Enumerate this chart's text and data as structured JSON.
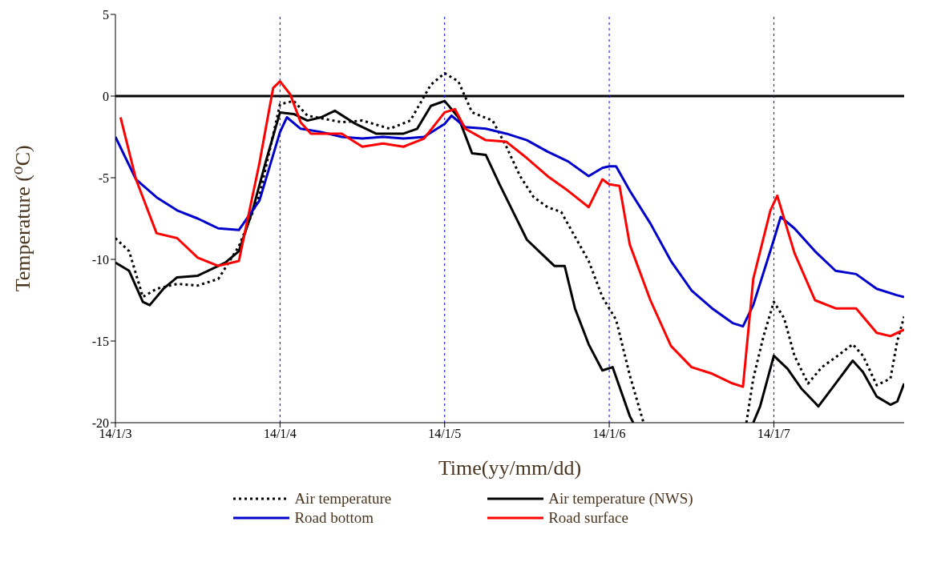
{
  "chart_data": {
    "type": "line",
    "xlabel": "Time(yy/mm/dd)",
    "ylabel": "Temperature ($^{o}$C)",
    "xlim": [
      "--01-03T00:00",
      "--01-07T19:00"
    ],
    "xticks": [
      {
        "value": "--01-03T00:00",
        "label": "14/1/3"
      },
      {
        "value": "--01-04T00:00",
        "label": "14/1/4"
      },
      {
        "value": "--01-05T00:00",
        "label": "14/1/5"
      },
      {
        "value": "--01-06T00:00",
        "label": "14/1/6"
      },
      {
        "value": "--01-07T00:00",
        "label": "14/1/7"
      }
    ],
    "ylim": [
      -20,
      5
    ],
    "yticks": [
      -20,
      -15,
      -10,
      -5,
      0,
      5
    ],
    "legend": "bottom",
    "marker": "none",
    "ref_lines": [
      {
        "axis": "y",
        "value": 0,
        "color": "#000000",
        "line_style": "solid"
      },
      {
        "axis": "x",
        "value": "--01-04T00:00",
        "color": "#0000ff",
        "line_style": "dotted"
      },
      {
        "axis": "x",
        "value": "--01-05T00:00",
        "color": "#0000ff",
        "line_style": "dotted"
      },
      {
        "axis": "x",
        "value": "--01-06T00:00",
        "color": "#0000ff",
        "line_style": "dotted"
      },
      {
        "axis": "x",
        "value": "--01-07T00:00",
        "color": "#0000ff",
        "line_style": "dotted"
      }
    ],
    "series": [
      {
        "name": "Air temperature",
        "color": "#000000",
        "line_style": "dotted",
        "x": [
          "--01-03T00:00",
          "--01-03T02:00",
          "--01-03T04:00",
          "--01-03T06:00",
          "--01-03T09:00",
          "--01-03T12:00",
          "--01-03T15:00",
          "--01-03T18:00",
          "--01-03T21:00",
          "--01-04T00:00",
          "--01-04T02:00",
          "--01-04T04:00",
          "--01-04T09:00",
          "--01-04T12:00",
          "--01-04T16:00",
          "--01-04T19:00",
          "--01-04T22:00",
          "--01-05T00:00",
          "--01-05T02:00",
          "--01-05T04:00",
          "--01-05T07:00",
          "--01-05T09:00",
          "--01-05T11:00",
          "--01-05T13:00",
          "--01-05T15:00",
          "--01-05T17:00",
          "--01-05T19:00",
          "--01-05T21:00",
          "--01-05T23:00",
          "--01-06T00:00",
          "--01-06T01:00",
          "--01-06T03:00",
          "--01-06T05:00",
          "--01-06T06:00",
          "--01-06T20:00",
          "--01-06T21:00",
          "--01-06T22:30",
          "--01-07T00:00",
          "--01-07T01:30",
          "--01-07T03:00",
          "--01-07T05:00",
          "--01-07T07:00",
          "--01-07T09:00",
          "--01-07T11:30",
          "--01-07T13:00",
          "--01-07T15:00",
          "--01-07T17:00",
          "--01-07T18:00",
          "--01-07T19:00"
        ],
        "values": [
          -8.7,
          -9.5,
          -12.3,
          -11.8,
          -11.5,
          -11.6,
          -11.2,
          -9.2,
          -6.1,
          -0.5,
          -0.3,
          -1.2,
          -1.6,
          -1.5,
          -2.0,
          -1.5,
          0.7,
          1.4,
          0.9,
          -1.0,
          -1.5,
          -3.1,
          -4.9,
          -6.2,
          -6.8,
          -7.1,
          -8.6,
          -10.1,
          -12.3,
          -13.0,
          -13.7,
          -17.1,
          -20,
          null,
          -20,
          -17.3,
          -14.7,
          -12.6,
          -13.6,
          -15.9,
          -17.6,
          -16.6,
          -16.0,
          -15.2,
          -15.9,
          -17.7,
          -17.3,
          -15.0,
          -13.5
        ]
      },
      {
        "name": "Air temperature (NWS)",
        "color": "#000000",
        "line_style": "solid",
        "x": [
          "--01-03T00:00",
          "--01-03T02:00",
          "--01-03T04:00",
          "--01-03T05:00",
          "--01-03T07:00",
          "--01-03T09:00",
          "--01-03T12:00",
          "--01-03T16:00",
          "--01-03T18:00",
          "--01-03T20:00",
          "--01-03T22:00",
          "--01-04T00:00",
          "--01-04T02:00",
          "--01-04T04:00",
          "--01-04T06:00",
          "--01-04T08:00",
          "--01-04T11:00",
          "--01-04T14:00",
          "--01-04T18:00",
          "--01-04T20:00",
          "--01-04T22:00",
          "--01-05T00:00",
          "--01-05T02:00",
          "--01-05T04:00",
          "--01-05T06:00",
          "--01-05T08:00",
          "--01-05T10:00",
          "--01-05T12:00",
          "--01-05T14:00",
          "--01-05T16:00",
          "--01-05T17:30",
          "--01-05T19:00",
          "--01-05T21:00",
          "--01-05T23:00",
          "--01-06T00:30",
          "--01-06T03:00",
          "--01-06T03:30",
          "--01-06T04:00",
          "--01-06T21:00",
          "--01-06T22:00",
          "--01-07T00:00",
          "--01-07T02:00",
          "--01-07T04:00",
          "--01-07T06:30",
          "--01-07T09:00",
          "--01-07T11:30",
          "--01-07T13:00",
          "--01-07T15:00",
          "--01-07T17:00",
          "--01-07T18:00",
          "--01-07T19:00"
        ],
        "values": [
          -10.2,
          -10.7,
          -12.6,
          -12.8,
          -11.8,
          -11.1,
          -11.0,
          -10.2,
          -9.5,
          -7.0,
          -3.9,
          -1.0,
          -1.1,
          -1.5,
          -1.3,
          -0.9,
          -1.7,
          -2.3,
          -2.3,
          -2.0,
          -0.6,
          -0.3,
          -1.3,
          -3.5,
          -3.6,
          -5.4,
          -7.1,
          -8.8,
          -9.6,
          -10.4,
          -10.4,
          -13.0,
          -15.2,
          -16.8,
          -16.6,
          -19.6,
          -20,
          null,
          -20,
          -19.0,
          -15.9,
          -16.7,
          -17.9,
          -19.0,
          -17.6,
          -16.2,
          -16.9,
          -18.4,
          -18.9,
          -18.7,
          -17.6
        ]
      },
      {
        "name": "Road bottom",
        "color": "#0000cc",
        "line_style": "solid",
        "x": [
          "--01-03T00:00",
          "--01-03T03:00",
          "--01-03T06:00",
          "--01-03T09:00",
          "--01-03T12:00",
          "--01-03T15:00",
          "--01-03T18:00",
          "--01-03T21:00",
          "--01-04T00:00",
          "--01-04T01:00",
          "--01-04T03:00",
          "--01-04T06:00",
          "--01-04T09:00",
          "--01-04T12:00",
          "--01-04T15:00",
          "--01-04T18:00",
          "--01-04T21:00",
          "--01-05T00:00",
          "--01-05T01:00",
          "--01-05T03:00",
          "--01-05T06:00",
          "--01-05T09:00",
          "--01-05T12:00",
          "--01-05T15:00",
          "--01-05T18:00",
          "--01-05T21:00",
          "--01-05T23:00",
          "--01-06T00:00",
          "--01-06T01:00",
          "--01-06T03:00",
          "--01-06T06:00",
          "--01-06T09:00",
          "--01-06T12:00",
          "--01-06T15:00",
          "--01-06T18:00",
          "--01-06T19:30",
          "--01-06T21:00",
          "--01-07T00:00",
          "--01-07T01:00",
          "--01-07T03:00",
          "--01-07T06:00",
          "--01-07T09:00",
          "--01-07T12:00",
          "--01-07T15:00",
          "--01-07T18:00",
          "--01-07T19:00"
        ],
        "values": [
          -2.5,
          -5.1,
          -6.2,
          -7.0,
          -7.5,
          -8.1,
          -8.2,
          -6.4,
          -2.2,
          -1.3,
          -2.0,
          -2.2,
          -2.5,
          -2.6,
          -2.5,
          -2.6,
          -2.5,
          -1.7,
          -1.2,
          -1.9,
          -2.0,
          -2.3,
          -2.7,
          -3.4,
          -4.0,
          -4.9,
          -4.4,
          -4.3,
          -4.3,
          -5.8,
          -7.8,
          -10.1,
          -11.9,
          -13.0,
          -13.9,
          -14.1,
          -12.8,
          -8.8,
          -7.4,
          -8.1,
          -9.5,
          -10.7,
          -10.9,
          -11.8,
          -12.2,
          -12.3
        ]
      },
      {
        "name": "Road surface",
        "color": "#ff0000",
        "line_style": "solid",
        "x": [
          "--01-03T00:45",
          "--01-03T03:00",
          "--01-03T06:00",
          "--01-03T09:00",
          "--01-03T12:00",
          "--01-03T15:00",
          "--01-03T18:00",
          "--01-03T21:00",
          "--01-03T23:00",
          "--01-04T00:00",
          "--01-04T01:30",
          "--01-04T03:00",
          "--01-04T04:30",
          "--01-04T09:00",
          "--01-04T12:00",
          "--01-04T15:00",
          "--01-04T18:00",
          "--01-04T21:00",
          "--01-05T00:00",
          "--01-05T01:30",
          "--01-05T03:00",
          "--01-05T06:00",
          "--01-05T09:00",
          "--01-05T12:00",
          "--01-05T15:00",
          "--01-05T18:00",
          "--01-05T21:00",
          "--01-05T23:00",
          "--01-06T00:00",
          "--01-06T01:30",
          "--01-06T03:00",
          "--01-06T06:00",
          "--01-06T09:00",
          "--01-06T12:00",
          "--01-06T15:00",
          "--01-06T18:00",
          "--01-06T19:30",
          "--01-06T21:00",
          "--01-06T23:30",
          "--01-07T00:30",
          "--01-07T03:00",
          "--01-07T06:00",
          "--01-07T09:00",
          "--01-07T12:00",
          "--01-07T15:00",
          "--01-07T17:00",
          "--01-07T19:00"
        ],
        "values": [
          -1.3,
          -5.1,
          -8.4,
          -8.7,
          -9.9,
          -10.4,
          -10.1,
          -4.1,
          0.5,
          0.9,
          0.1,
          -1.6,
          -2.3,
          -2.3,
          -3.1,
          -2.9,
          -3.1,
          -2.6,
          -1.0,
          -0.8,
          -2.0,
          -2.7,
          -2.8,
          -3.8,
          -4.9,
          -5.8,
          -6.8,
          -5.1,
          -5.4,
          -5.5,
          -9.1,
          -12.5,
          -15.3,
          -16.6,
          -17.0,
          -17.6,
          -17.8,
          -11.2,
          -7.0,
          -6.1,
          -9.6,
          -12.5,
          -13.0,
          -13.0,
          -14.5,
          -14.7,
          -14.3
        ]
      }
    ]
  }
}
